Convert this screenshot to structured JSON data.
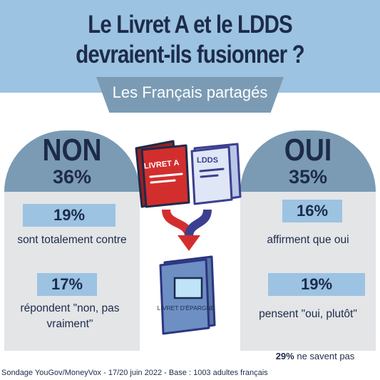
{
  "title": "Le Livret A et le LDDS devraient-ils fusionner ?",
  "subtitle": "Les Français partagés",
  "non": {
    "label": "NON",
    "percent": "36%",
    "items": [
      {
        "percent": "19%",
        "text": "sont totalement contre"
      },
      {
        "percent": "17%",
        "text": "répondent \"non, pas vraiment\""
      }
    ]
  },
  "oui": {
    "label": "OUI",
    "percent": "35%",
    "items": [
      {
        "percent": "16%",
        "text": "affirment que oui"
      },
      {
        "percent": "19%",
        "text": "pensent \"oui, plutôt\""
      }
    ]
  },
  "illustration": {
    "book1_label": "LIVRET A",
    "book2_label": "LDDS",
    "result_label": "LIVRET D'ÉPARGNE",
    "colors": {
      "red": "#d32e2e",
      "blue": "#3b3f8f",
      "navy": "#1d2b4a",
      "light": "#9cc3e2"
    }
  },
  "undecided": {
    "percent": "29%",
    "text": " ne savent pas"
  },
  "source": "Sondage YouGov/MoneyVox - 17/20 juin 2022 - Base : 1003 adultes français"
}
